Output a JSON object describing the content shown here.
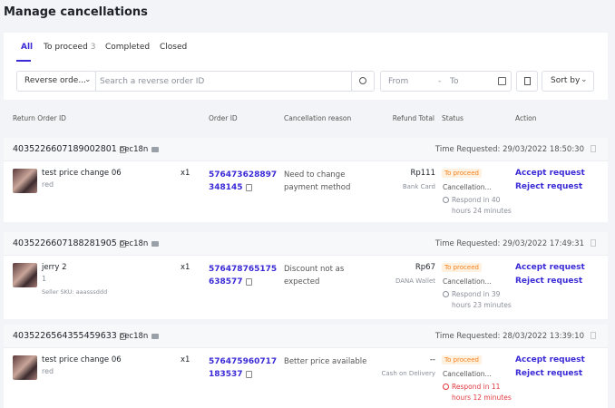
{
  "header": {
    "title": "Manage cancellations"
  },
  "tabs": [
    {
      "label": "All"
    },
    {
      "label": "To proceed",
      "count": 3
    },
    {
      "label": "Completed"
    },
    {
      "label": "Closed"
    }
  ],
  "filters": {
    "search_type": "Reverse orde...",
    "search_placeholder": "Search a reverse order ID",
    "date_from": "From",
    "date_separator": "-",
    "date_to": "To",
    "sort": "Sort by"
  },
  "table": {
    "columns": [
      "Return Order ID",
      "Order ID",
      "Cancellation reason",
      "Refund Total",
      "Status",
      "Action"
    ],
    "orders": [
      {
        "return_id": "4035226607189002801",
        "buyer": "oec18n",
        "time": "Time Requested: 29/03/2022 18:50:30",
        "product": "test price change 06",
        "variant": "red",
        "qty": "x1",
        "order_id": "576473628897348145",
        "reason": "Need to change payment method",
        "refund": "Rp111",
        "method": "Bank Card",
        "status": "To proceed",
        "status_detail": "Cancellation...",
        "respond": "Respond in 40 hours 24 minutes",
        "respond_color": "#8a8f99",
        "actions": [
          "Accept request",
          "Reject request"
        ]
      },
      {
        "return_id": "4035226607188281905",
        "buyer": "oec18n",
        "time": "Time Requested: 29/03/2022 17:49:31",
        "product": "jerry 2",
        "variant": "1",
        "sku": "Seller SKU: aaasssddd",
        "qty": "x1",
        "order_id": "576478765175638577",
        "reason": "Discount not as expected",
        "refund": "Rp67",
        "method": "DANA Wallet",
        "status": "To proceed",
        "status_detail": "Cancellation...",
        "respond": "Respond in 39 hours 23 minutes",
        "respond_color": "#8a8f99",
        "actions": [
          "Accept request",
          "Reject request"
        ]
      },
      {
        "return_id": "4035226564355459633",
        "buyer": "oec18n",
        "time": "Time Requested: 28/03/2022 13:39:10",
        "product": "test price change 06",
        "variant": "red",
        "qty": "x1",
        "order_id": "576475960717183537",
        "reason": "Better price available",
        "refund": "--",
        "method": "Cash on Delivery",
        "status": "To proceed",
        "status_detail": "Cancellation...",
        "respond": "Respond in 11 hours 12 minutes",
        "respond_color": "#e0383e",
        "actions": [
          "Accept request",
          "Reject request"
        ]
      }
    ]
  }
}
